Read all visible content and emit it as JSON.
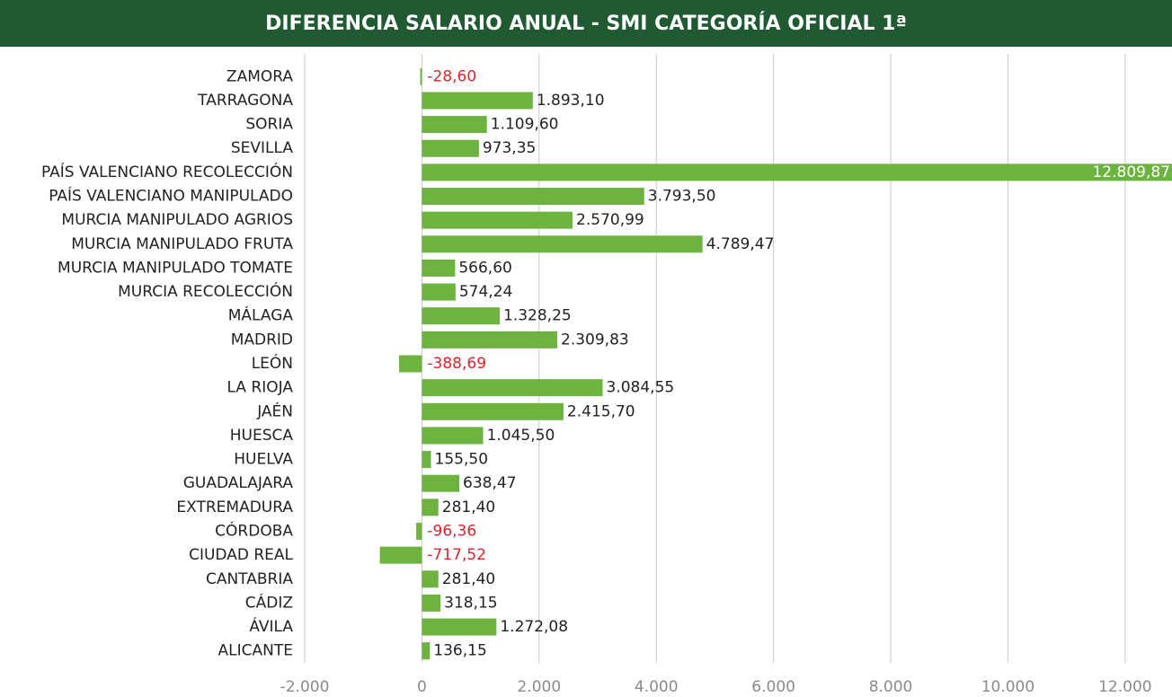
{
  "chart_data": {
    "type": "barh",
    "title": "DIFERENCIA SALARIO ANUAL - SMI CATEGORÍA OFICIAL 1ª",
    "categories": [
      "ZAMORA",
      "TARRAGONA",
      "SORIA",
      "SEVILLA",
      "PAÍS VALENCIANO RECOLECCIÓN",
      "PAÍS VALENCIANO MANIPULADO",
      "MURCIA MANIPULADO AGRIOS",
      "MURCIA MANIPULADO FRUTA",
      "MURCIA MANIPULADO TOMATE",
      "MURCIA RECOLECCIÓN",
      "MÁLAGA",
      "MADRID",
      "LEÓN",
      "LA RIOJA",
      "JAÉN",
      "HUESCA",
      "HUELVA",
      "GUADALAJARA",
      "EXTREMADURA",
      "CÓRDOBA",
      "CIUDAD REAL",
      "CANTABRIA",
      "CÁDIZ",
      "ÁVILA",
      "ALICANTE"
    ],
    "values": [
      -28.6,
      1893.1,
      1109.6,
      973.35,
      12809.87,
      3793.5,
      2570.99,
      4789.47,
      566.6,
      574.24,
      1328.25,
      2309.83,
      -388.69,
      3084.55,
      2415.7,
      1045.5,
      155.5,
      638.47,
      281.4,
      -96.36,
      -717.52,
      281.4,
      318.15,
      1272.08,
      136.15
    ],
    "value_labels": [
      "-28,60",
      "1.893,10",
      "1.109,60",
      "973,35",
      "12.809,87",
      "3.793,50",
      "2.570,99",
      "4.789,47",
      "566,60",
      "574,24",
      "1.328,25",
      "2.309,83",
      "-388,69",
      "3.084,55",
      "2.415,70",
      "1.045,50",
      "155,50",
      "638,47",
      "281,40",
      "-96,36",
      "-717,52",
      "281,40",
      "318,15",
      "1.272,08",
      "136,15"
    ],
    "color": "#6db33f",
    "xlim": [
      -2000,
      12800
    ],
    "xticks": [
      {
        "value": -2000,
        "label": "-2.000"
      },
      0,
      {
        "value": 2000,
        "label": "2.000"
      },
      {
        "value": 4000,
        "label": "4.000"
      },
      {
        "value": 6000,
        "label": "6.000"
      },
      {
        "value": 8000,
        "label": "8.000"
      },
      {
        "value": 10000,
        "label": "10.000"
      },
      {
        "value": 12000,
        "label": "12.000"
      }
    ],
    "grid": true
  }
}
